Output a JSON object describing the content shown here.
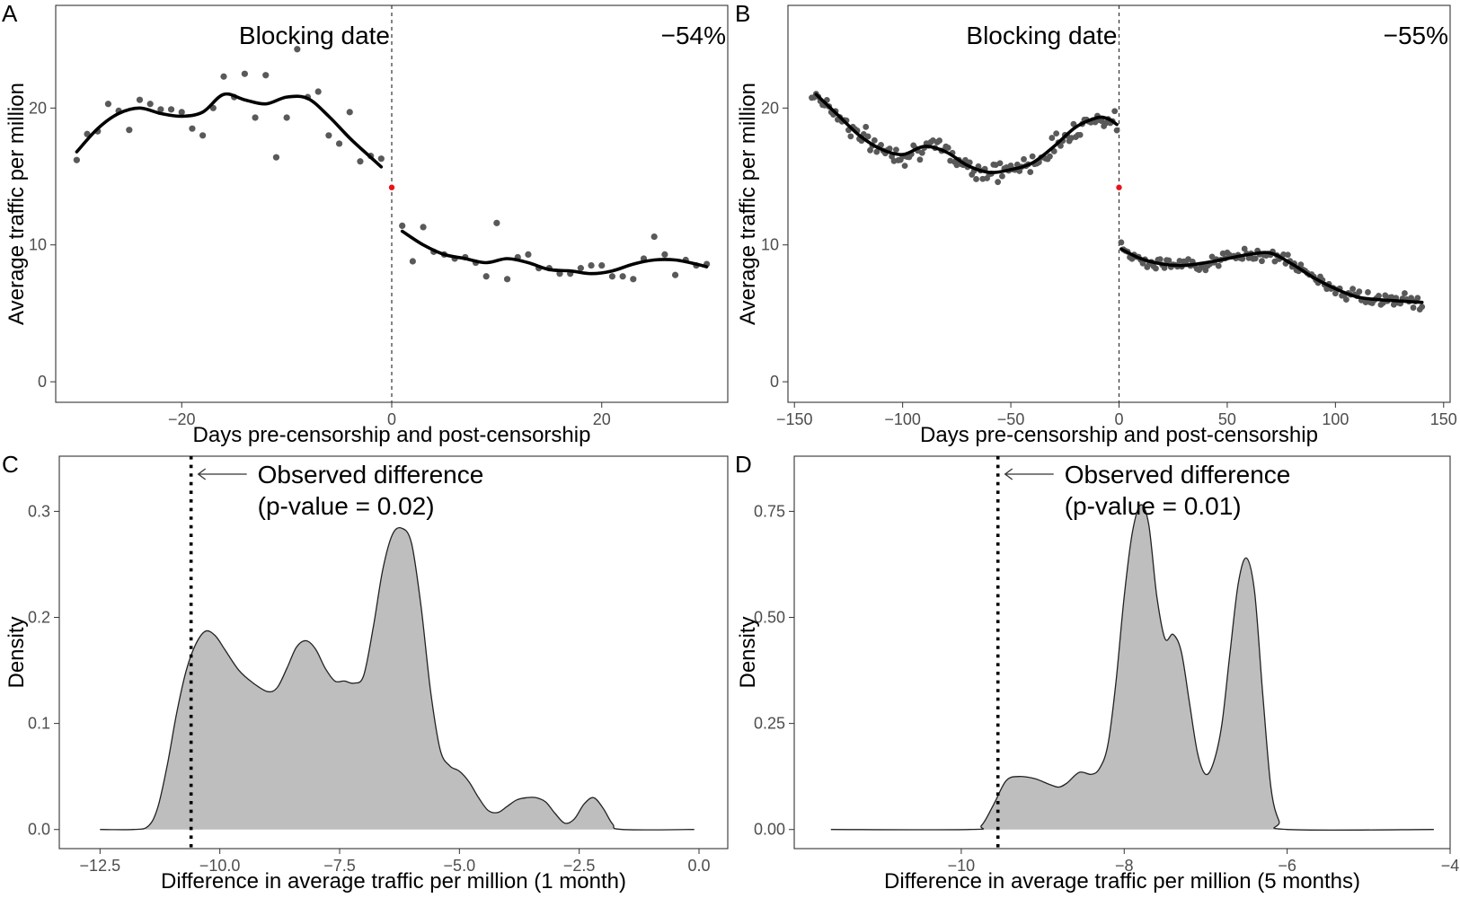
{
  "chart_data": [
    {
      "panel": "A",
      "type": "scatter",
      "xlabel": "Days pre-censorship and post-censorship",
      "ylabel": "Average traffic per million",
      "xlim": [
        -32,
        32
      ],
      "ylim": [
        -1.5,
        27.5
      ],
      "xticks": [
        -20,
        0,
        20
      ],
      "xtick_labels": [
        "−20",
        "0",
        "20"
      ],
      "yticks": [
        0,
        10,
        20
      ],
      "ytick_labels": [
        "0",
        "10",
        "20"
      ],
      "vline": {
        "x": 0,
        "label": "Blocking date"
      },
      "change_label": "−54%",
      "red_point": [
        0,
        14.2
      ],
      "points": [
        [
          -30,
          16.2
        ],
        [
          -29,
          18.1
        ],
        [
          -28,
          18.3
        ],
        [
          -27,
          20.3
        ],
        [
          -26,
          19.8
        ],
        [
          -25,
          18.4
        ],
        [
          -24,
          20.6
        ],
        [
          -23,
          20.3
        ],
        [
          -22,
          19.9
        ],
        [
          -21,
          19.9
        ],
        [
          -20,
          19.7
        ],
        [
          -19,
          18.5
        ],
        [
          -18,
          18.0
        ],
        [
          -17,
          20.0
        ],
        [
          -16,
          22.3
        ],
        [
          -15,
          20.8
        ],
        [
          -14,
          22.5
        ],
        [
          -13,
          19.3
        ],
        [
          -12,
          22.4
        ],
        [
          -11,
          16.4
        ],
        [
          -10,
          19.3
        ],
        [
          -9,
          24.3
        ],
        [
          -8,
          20.8
        ],
        [
          -7,
          21.2
        ],
        [
          -6,
          18.0
        ],
        [
          -5,
          17.4
        ],
        [
          -4,
          19.7
        ],
        [
          -3,
          16.1
        ],
        [
          -2,
          16.5
        ],
        [
          -1,
          16.3
        ],
        [
          1,
          11.4
        ],
        [
          2,
          8.8
        ],
        [
          3,
          11.3
        ],
        [
          4,
          9.5
        ],
        [
          5,
          9.3
        ],
        [
          6,
          9.0
        ],
        [
          7,
          9.1
        ],
        [
          8,
          8.7
        ],
        [
          9,
          7.7
        ],
        [
          10,
          11.6
        ],
        [
          11,
          7.5
        ],
        [
          12,
          9.1
        ],
        [
          13,
          9.3
        ],
        [
          14,
          8.3
        ],
        [
          15,
          8.3
        ],
        [
          16,
          7.9
        ],
        [
          17,
          7.9
        ],
        [
          18,
          8.3
        ],
        [
          19,
          8.5
        ],
        [
          20,
          8.5
        ],
        [
          21,
          7.7
        ],
        [
          22,
          7.7
        ],
        [
          23,
          7.5
        ],
        [
          24,
          9.0
        ],
        [
          25,
          10.6
        ],
        [
          26,
          9.3
        ],
        [
          27,
          7.8
        ],
        [
          28,
          8.9
        ],
        [
          29,
          8.5
        ],
        [
          30,
          8.6
        ]
      ],
      "pre_smooth": [
        [
          -30,
          16.8
        ],
        [
          -28,
          18.5
        ],
        [
          -26,
          19.6
        ],
        [
          -24,
          20.0
        ],
        [
          -22,
          19.6
        ],
        [
          -20,
          19.4
        ],
        [
          -18,
          19.7
        ],
        [
          -16,
          21.0
        ],
        [
          -14,
          20.6
        ],
        [
          -12,
          20.3
        ],
        [
          -10,
          20.8
        ],
        [
          -8,
          20.7
        ],
        [
          -6,
          19.4
        ],
        [
          -4,
          17.8
        ],
        [
          -2,
          16.4
        ],
        [
          -1,
          15.7
        ]
      ],
      "post_smooth": [
        [
          1,
          11.0
        ],
        [
          3,
          10.0
        ],
        [
          5,
          9.3
        ],
        [
          7,
          9.0
        ],
        [
          9,
          8.7
        ],
        [
          11,
          9.0
        ],
        [
          13,
          8.7
        ],
        [
          15,
          8.2
        ],
        [
          17,
          8.1
        ],
        [
          19,
          7.9
        ],
        [
          21,
          8.1
        ],
        [
          23,
          8.6
        ],
        [
          25,
          8.9
        ],
        [
          27,
          8.9
        ],
        [
          29,
          8.6
        ],
        [
          30,
          8.4
        ]
      ]
    },
    {
      "panel": "B",
      "type": "scatter",
      "xlabel": "Days pre-censorship and post-censorship",
      "ylabel": "Average traffic per million",
      "xlim": [
        -153,
        153
      ],
      "ylim": [
        -1.5,
        27.5
      ],
      "xticks": [
        -150,
        -100,
        -50,
        0,
        50,
        100,
        150
      ],
      "xtick_labels": [
        "−150",
        "−100",
        "−50",
        "0",
        "50",
        "100",
        "150"
      ],
      "yticks": [
        0,
        10,
        20
      ],
      "ytick_labels": [
        "0",
        "10",
        "20"
      ],
      "vline": {
        "x": 0,
        "label": "Blocking date"
      },
      "change_label": "−55%",
      "red_point": [
        0,
        14.2
      ],
      "pre_smooth": [
        [
          -140,
          21.0
        ],
        [
          -130,
          19.5
        ],
        [
          -120,
          18.0
        ],
        [
          -110,
          17.0
        ],
        [
          -100,
          16.6
        ],
        [
          -90,
          17.2
        ],
        [
          -80,
          16.8
        ],
        [
          -70,
          15.8
        ],
        [
          -60,
          15.3
        ],
        [
          -50,
          15.5
        ],
        [
          -40,
          16.0
        ],
        [
          -30,
          17.2
        ],
        [
          -20,
          18.6
        ],
        [
          -10,
          19.3
        ],
        [
          -5,
          19.2
        ],
        [
          -1,
          18.8
        ]
      ],
      "post_smooth": [
        [
          1,
          9.7
        ],
        [
          10,
          9.0
        ],
        [
          20,
          8.6
        ],
        [
          30,
          8.5
        ],
        [
          40,
          8.7
        ],
        [
          50,
          9.0
        ],
        [
          60,
          9.3
        ],
        [
          70,
          9.4
        ],
        [
          80,
          8.6
        ],
        [
          90,
          7.6
        ],
        [
          100,
          6.8
        ],
        [
          110,
          6.2
        ],
        [
          120,
          6.0
        ],
        [
          130,
          5.9
        ],
        [
          140,
          5.8
        ]
      ]
    },
    {
      "panel": "C",
      "type": "area",
      "xlabel": "Difference in average traffic per million (1 month)",
      "ylabel": "Density",
      "xlim": [
        -13.35,
        0.6
      ],
      "ylim": [
        -0.018,
        0.352
      ],
      "xticks": [
        -12.5,
        -10.0,
        -7.5,
        -5.0,
        -2.5,
        0.0
      ],
      "xtick_labels": [
        "−12.5",
        "−10.0",
        "−7.5",
        "−5.0",
        "−2.5",
        "0.0"
      ],
      "yticks": [
        0.0,
        0.1,
        0.2,
        0.3
      ],
      "ytick_labels": [
        "0.0",
        "0.1",
        "0.2",
        "0.3"
      ],
      "observed_x": -10.6,
      "annotation": "Observed difference",
      "p_value_label": "(p-value = 0.02)",
      "density": [
        [
          -12.5,
          0.0
        ],
        [
          -11.8,
          0.0
        ],
        [
          -11.5,
          0.003
        ],
        [
          -11.3,
          0.02
        ],
        [
          -11.1,
          0.06
        ],
        [
          -10.9,
          0.11
        ],
        [
          -10.7,
          0.15
        ],
        [
          -10.5,
          0.175
        ],
        [
          -10.3,
          0.187
        ],
        [
          -10.1,
          0.183
        ],
        [
          -9.9,
          0.17
        ],
        [
          -9.6,
          0.15
        ],
        [
          -9.3,
          0.138
        ],
        [
          -9.0,
          0.13
        ],
        [
          -8.8,
          0.134
        ],
        [
          -8.6,
          0.152
        ],
        [
          -8.4,
          0.172
        ],
        [
          -8.2,
          0.178
        ],
        [
          -8.0,
          0.17
        ],
        [
          -7.8,
          0.152
        ],
        [
          -7.6,
          0.14
        ],
        [
          -7.4,
          0.14
        ],
        [
          -7.2,
          0.138
        ],
        [
          -7.0,
          0.145
        ],
        [
          -6.8,
          0.19
        ],
        [
          -6.6,
          0.245
        ],
        [
          -6.4,
          0.278
        ],
        [
          -6.2,
          0.284
        ],
        [
          -6.0,
          0.27
        ],
        [
          -5.8,
          0.21
        ],
        [
          -5.6,
          0.13
        ],
        [
          -5.4,
          0.075
        ],
        [
          -5.2,
          0.06
        ],
        [
          -5.0,
          0.055
        ],
        [
          -4.8,
          0.045
        ],
        [
          -4.6,
          0.03
        ],
        [
          -4.4,
          0.018
        ],
        [
          -4.2,
          0.016
        ],
        [
          -4.0,
          0.022
        ],
        [
          -3.8,
          0.028
        ],
        [
          -3.6,
          0.03
        ],
        [
          -3.4,
          0.03
        ],
        [
          -3.2,
          0.026
        ],
        [
          -3.0,
          0.015
        ],
        [
          -2.8,
          0.006
        ],
        [
          -2.6,
          0.01
        ],
        [
          -2.4,
          0.024
        ],
        [
          -2.2,
          0.03
        ],
        [
          -2.0,
          0.02
        ],
        [
          -1.8,
          0.005
        ],
        [
          -1.6,
          0.0
        ],
        [
          -0.1,
          0.0
        ]
      ]
    },
    {
      "panel": "D",
      "type": "area",
      "xlabel": "Difference in average traffic per million (5 months)",
      "ylabel": "Density",
      "xlim": [
        -12.05,
        -4.0
      ],
      "ylim": [
        -0.045,
        0.88
      ],
      "xticks": [
        -10,
        -8,
        -6,
        -4
      ],
      "xtick_labels": [
        "−10",
        "−8",
        "−6",
        "−4"
      ],
      "yticks": [
        0.0,
        0.25,
        0.5,
        0.75
      ],
      "ytick_labels": [
        "0.00",
        "0.25",
        "0.50",
        "0.75"
      ],
      "observed_x": -9.55,
      "annotation": "Observed difference",
      "p_value_label": "(p-value = 0.01)",
      "density": [
        [
          -11.6,
          0.0
        ],
        [
          -9.9,
          0.0
        ],
        [
          -9.75,
          0.01
        ],
        [
          -9.6,
          0.06
        ],
        [
          -9.45,
          0.115
        ],
        [
          -9.3,
          0.125
        ],
        [
          -9.1,
          0.12
        ],
        [
          -8.9,
          0.105
        ],
        [
          -8.8,
          0.1
        ],
        [
          -8.7,
          0.11
        ],
        [
          -8.55,
          0.135
        ],
        [
          -8.4,
          0.13
        ],
        [
          -8.3,
          0.145
        ],
        [
          -8.2,
          0.2
        ],
        [
          -8.1,
          0.35
        ],
        [
          -8.0,
          0.55
        ],
        [
          -7.9,
          0.7
        ],
        [
          -7.8,
          0.765
        ],
        [
          -7.7,
          0.72
        ],
        [
          -7.6,
          0.55
        ],
        [
          -7.5,
          0.45
        ],
        [
          -7.4,
          0.46
        ],
        [
          -7.3,
          0.42
        ],
        [
          -7.2,
          0.3
        ],
        [
          -7.1,
          0.18
        ],
        [
          -7.0,
          0.13
        ],
        [
          -6.9,
          0.16
        ],
        [
          -6.8,
          0.25
        ],
        [
          -6.7,
          0.42
        ],
        [
          -6.6,
          0.58
        ],
        [
          -6.5,
          0.64
        ],
        [
          -6.4,
          0.56
        ],
        [
          -6.3,
          0.32
        ],
        [
          -6.2,
          0.1
        ],
        [
          -6.1,
          0.02
        ],
        [
          -6.0,
          0.0
        ],
        [
          -4.2,
          0.0
        ]
      ]
    }
  ]
}
